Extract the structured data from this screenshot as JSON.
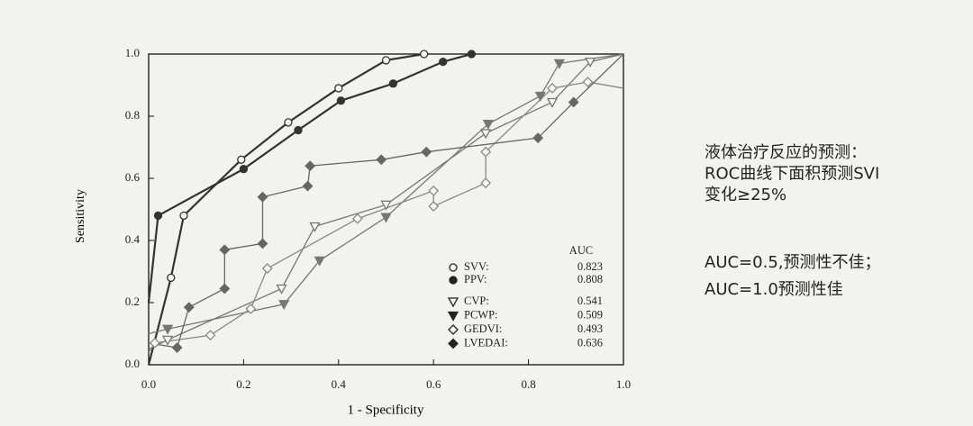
{
  "chart_data": {
    "type": "line",
    "xlabel": "1 - Specificity",
    "ylabel": "Sensitivity",
    "xlim": [
      0,
      1
    ],
    "ylim": [
      0,
      1
    ],
    "xticks": [
      {
        "value": 0,
        "label": "0.0"
      },
      0.2,
      0.4,
      0.6,
      0.8,
      {
        "value": 1,
        "label": "1.0"
      }
    ],
    "yticks": [
      {
        "value": 0,
        "label": "0.0"
      },
      0.2,
      0.4,
      0.6,
      0.8,
      {
        "value": 1,
        "label": "1.0"
      }
    ],
    "legend_title": "AUC",
    "series": [
      {
        "name": "SVV:",
        "auc": 0.823,
        "color": "#333333",
        "marker": "open-circle",
        "x": [
          0,
          0.047,
          0.074,
          0.195,
          0.294,
          0.4,
          0.5,
          0.58
        ],
        "y": [
          0,
          0.28,
          0.48,
          0.66,
          0.78,
          0.89,
          0.98,
          1.0
        ]
      },
      {
        "name": "PPV:",
        "auc": 0.808,
        "color": "#333333",
        "marker": "filled-circle",
        "x": [
          0,
          0.02,
          0.2,
          0.315,
          0.405,
          0.515,
          0.62,
          0.68
        ],
        "y": [
          0.2,
          0.48,
          0.63,
          0.755,
          0.85,
          0.905,
          0.975,
          1.0
        ]
      },
      {
        "name": "CVP:",
        "auc": 0.541,
        "color": "#777777",
        "marker": "open-triangle",
        "x": [
          0,
          0.04,
          0.28,
          0.35,
          0.5,
          0.71,
          0.85,
          0.93,
          1
        ],
        "y": [
          0.05,
          0.08,
          0.245,
          0.445,
          0.515,
          0.745,
          0.845,
          0.975,
          1
        ]
      },
      {
        "name": "PCWP:",
        "auc": 0.509,
        "color": "#777777",
        "marker": "filled-triangle",
        "x": [
          0,
          0.04,
          0.285,
          0.36,
          0.5,
          0.715,
          0.825,
          0.865,
          1
        ],
        "y": [
          0.1,
          0.115,
          0.195,
          0.335,
          0.475,
          0.775,
          0.865,
          0.97,
          1
        ]
      },
      {
        "name": "GEDVI:",
        "auc": 0.493,
        "color": "#888888",
        "marker": "open-diamond",
        "x": [
          0,
          0.013,
          0.13,
          0.215,
          0.25,
          0.44,
          0.6,
          0.6,
          0.71,
          0.71,
          0.85,
          0.925,
          1
        ],
        "y": [
          0.04,
          0.07,
          0.095,
          0.18,
          0.31,
          0.47,
          0.56,
          0.51,
          0.585,
          0.685,
          0.89,
          0.91,
          0.89
        ]
      },
      {
        "name": "LVEDAI:",
        "auc": 0.636,
        "color": "#666666",
        "marker": "filled-diamond",
        "x": [
          0,
          0.06,
          0.085,
          0.16,
          0.16,
          0.24,
          0.24,
          0.335,
          0.34,
          0.49,
          0.585,
          0.82,
          0.895,
          1
        ],
        "y": [
          0.07,
          0.055,
          0.185,
          0.245,
          0.37,
          0.39,
          0.54,
          0.575,
          0.64,
          0.66,
          0.685,
          0.73,
          0.845,
          1
        ]
      }
    ],
    "annotations": [
      [
        "液体治疗反应的预测：",
        "ROC曲线下面积预测SVI",
        "变化≥25%"
      ],
      [
        "AUC=0.5,预测性不佳；",
        "AUC=1.0预测性佳"
      ]
    ]
  }
}
